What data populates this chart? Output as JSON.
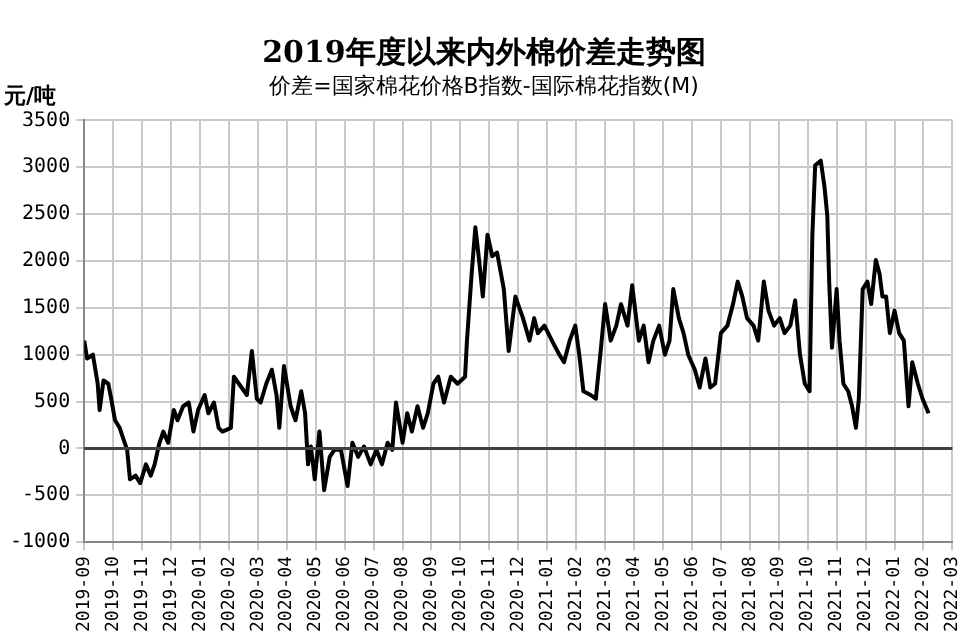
{
  "chart_data": {
    "type": "line",
    "title": "2019年度以来内外棉价差走势图",
    "subtitle": "价差=国家棉花价格B指数-国际棉花指数(M)",
    "ylabel": "元/吨",
    "x": [
      "2019-09-01",
      "2019-09-04",
      "2019-09-10",
      "2019-09-15",
      "2019-09-17",
      "2019-09-21",
      "2019-09-26",
      "2019-09-29",
      "2019-10-03",
      "2019-10-08",
      "2019-10-12",
      "2019-10-16",
      "2019-10-19",
      "2019-10-25",
      "2019-10-30",
      "2019-11-05",
      "2019-11-10",
      "2019-11-14",
      "2019-11-19",
      "2019-11-23",
      "2019-11-28",
      "2019-12-04",
      "2019-12-08",
      "2019-12-14",
      "2019-12-20",
      "2019-12-25",
      "2019-12-30",
      "2020-01-06",
      "2020-01-10",
      "2020-01-16",
      "2020-01-21",
      "2020-01-25",
      "2020-02-03",
      "2020-02-06",
      "2020-02-11",
      "2020-02-19",
      "2020-02-24",
      "2020-02-29",
      "2020-03-04",
      "2020-03-10",
      "2020-03-16",
      "2020-03-21",
      "2020-03-24",
      "2020-03-29",
      "2020-04-05",
      "2020-04-10",
      "2020-04-16",
      "2020-04-20",
      "2020-04-23",
      "2020-04-26",
      "2020-04-30",
      "2020-05-05",
      "2020-05-10",
      "2020-05-16",
      "2020-05-21",
      "2020-05-28",
      "2020-06-04",
      "2020-06-09",
      "2020-06-15",
      "2020-06-21",
      "2020-06-28",
      "2020-07-04",
      "2020-07-10",
      "2020-07-16",
      "2020-07-21",
      "2020-07-25",
      "2020-08-01",
      "2020-08-06",
      "2020-08-11",
      "2020-08-17",
      "2020-08-23",
      "2020-08-28",
      "2020-09-03",
      "2020-09-08",
      "2020-09-14",
      "2020-09-21",
      "2020-09-28",
      "2020-10-06",
      "2020-10-08",
      "2020-10-13",
      "2020-10-17",
      "2020-10-21",
      "2020-10-25",
      "2020-10-30",
      "2020-11-04",
      "2020-11-09",
      "2020-11-16",
      "2020-11-21",
      "2020-11-28",
      "2020-12-06",
      "2020-12-13",
      "2020-12-18",
      "2020-12-22",
      "2020-12-29",
      "2021-01-06",
      "2021-01-14",
      "2021-01-19",
      "2021-01-25",
      "2021-01-31",
      "2021-02-04",
      "2021-02-08",
      "2021-02-15",
      "2021-02-20",
      "2021-02-25",
      "2021-03-01",
      "2021-03-07",
      "2021-03-13",
      "2021-03-18",
      "2021-03-25",
      "2021-03-30",
      "2021-04-06",
      "2021-04-11",
      "2021-04-16",
      "2021-04-21",
      "2021-04-27",
      "2021-05-03",
      "2021-05-08",
      "2021-05-12",
      "2021-05-18",
      "2021-05-23",
      "2021-05-28",
      "2021-06-04",
      "2021-06-09",
      "2021-06-15",
      "2021-06-20",
      "2021-06-25",
      "2021-07-01",
      "2021-07-08",
      "2021-07-14",
      "2021-07-19",
      "2021-07-24",
      "2021-07-29",
      "2021-08-05",
      "2021-08-10",
      "2021-08-16",
      "2021-08-21",
      "2021-08-27",
      "2021-09-02",
      "2021-09-07",
      "2021-09-13",
      "2021-09-18",
      "2021-09-23",
      "2021-09-28",
      "2021-10-03",
      "2021-10-06",
      "2021-10-09",
      "2021-10-15",
      "2021-10-19",
      "2021-10-22",
      "2021-10-24",
      "2021-10-27",
      "2021-11-01",
      "2021-11-04",
      "2021-11-08",
      "2021-11-13",
      "2021-11-17",
      "2021-11-21",
      "2021-11-24",
      "2021-11-28",
      "2021-12-03",
      "2021-12-07",
      "2021-12-12",
      "2021-12-16",
      "2021-12-19",
      "2021-12-23",
      "2021-12-27",
      "2022-01-01",
      "2022-01-06",
      "2022-01-11",
      "2022-01-16",
      "2022-01-20",
      "2022-01-26",
      "2022-01-31",
      "2022-02-06"
    ],
    "series": [
      {
        "color": "#000000",
        "values": [
          1150,
          960,
          1000,
          690,
          410,
          725,
          690,
          530,
          300,
          220,
          100,
          -15,
          -330,
          -290,
          -370,
          -170,
          -290,
          -170,
          60,
          180,
          60,
          410,
          300,
          450,
          490,
          180,
          410,
          570,
          375,
          490,
          220,
          180,
          220,
          765,
          690,
          570,
          1040,
          530,
          490,
          690,
          840,
          570,
          220,
          880,
          450,
          300,
          610,
          375,
          -170,
          20,
          -330,
          180,
          -445,
          -90,
          -15,
          -15,
          -400,
          60,
          -90,
          20,
          -170,
          -15,
          -170,
          60,
          -15,
          490,
          60,
          375,
          180,
          450,
          220,
          375,
          690,
          765,
          490,
          765,
          690,
          765,
          1150,
          1860,
          2360,
          2010,
          1620,
          2280,
          2050,
          2090,
          1700,
          1040,
          1620,
          1390,
          1150,
          1390,
          1230,
          1310,
          1150,
          1000,
          920,
          1150,
          1310,
          1000,
          610,
          570,
          530,
          1075,
          1540,
          1150,
          1310,
          1540,
          1310,
          1740,
          1150,
          1310,
          920,
          1150,
          1310,
          1000,
          1150,
          1700,
          1390,
          1230,
          1000,
          840,
          650,
          960,
          650,
          690,
          1230,
          1310,
          1540,
          1780,
          1620,
          1390,
          1310,
          1150,
          1780,
          1470,
          1310,
          1390,
          1230,
          1310,
          1580,
          1000,
          690,
          610,
          2280,
          3020,
          3070,
          2790,
          2480,
          1780,
          1075,
          1700,
          1150,
          690,
          610,
          450,
          220,
          530,
          1700,
          1780,
          1540,
          2010,
          1860,
          1620,
          1620,
          1230,
          1470,
          1230,
          1150,
          450,
          920,
          690,
          530,
          375
        ]
      }
    ],
    "xlim": [
      "2019-09",
      "2022-03"
    ],
    "xticks": [
      "2019-09",
      "2019-10",
      "2019-11",
      "2019-12",
      "2020-01",
      "2020-02",
      "2020-03",
      "2020-04",
      "2020-05",
      "2020-06",
      "2020-07",
      "2020-08",
      "2020-09",
      "2020-10",
      "2020-11",
      "2020-12",
      "2021-01",
      "2021-02",
      "2021-03",
      "2021-04",
      "2021-05",
      "2021-06",
      "2021-07",
      "2021-08",
      "2021-09",
      "2021-10",
      "2021-11",
      "2021-12",
      "2022-01",
      "2022-02",
      "2022-03"
    ],
    "ylim": [
      -1000,
      3500
    ],
    "yticks": [
      -1000,
      -500,
      0,
      500,
      1000,
      1500,
      2000,
      2500,
      3000,
      3500
    ],
    "ref_lines": [
      {
        "axis": "y",
        "value": 0,
        "color": "#404040"
      }
    ],
    "grid": true,
    "legend": false,
    "marker": "none",
    "line_style": "solid"
  }
}
